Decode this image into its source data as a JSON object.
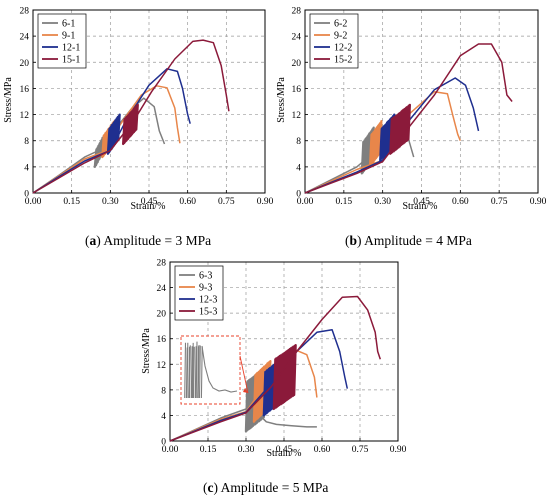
{
  "chart_data": [
    {
      "type": "line",
      "caption_letter": "a",
      "caption_text": "Amplitude = 3 MPa",
      "xlabel": "Strain/%",
      "ylabel": "Stress/MPa",
      "xlim": [
        0,
        0.9
      ],
      "ylim": [
        0,
        28
      ],
      "xticks": [
        "0.00",
        "0.15",
        "0.30",
        "0.45",
        "0.60",
        "0.75",
        "0.90"
      ],
      "yticks": [
        "0",
        "4",
        "8",
        "12",
        "16",
        "20",
        "24",
        "28"
      ],
      "grid": true,
      "legend_position": "top-left",
      "series": [
        {
          "name": "6-1",
          "color": "#7f7f7f",
          "x": [
            0.0,
            0.1,
            0.2,
            0.255,
            0.3,
            0.38,
            0.43,
            0.47,
            0.49,
            0.51
          ],
          "y": [
            0.0,
            2.7,
            5.5,
            6.5,
            8.8,
            12.8,
            14.5,
            13.2,
            9.5,
            7.5
          ],
          "loop_band": {
            "x": [
              0.24,
              0.27
            ],
            "y": [
              4.0,
              8.8
            ]
          }
        },
        {
          "name": "9-1",
          "color": "#e8864a",
          "x": [
            0.0,
            0.1,
            0.2,
            0.29,
            0.33,
            0.42,
            0.48,
            0.52,
            0.55,
            0.56,
            0.57
          ],
          "y": [
            0.0,
            2.6,
            5.2,
            6.5,
            10.0,
            15.0,
            16.4,
            16.1,
            13.0,
            10.0,
            7.6
          ],
          "loop_band": {
            "x": [
              0.27,
              0.31
            ],
            "y": [
              5.5,
              11.0
            ]
          }
        },
        {
          "name": "12-1",
          "color": "#1f2f8f",
          "x": [
            0.0,
            0.1,
            0.2,
            0.3,
            0.36,
            0.45,
            0.52,
            0.56,
            0.58,
            0.6,
            0.61
          ],
          "y": [
            0.0,
            2.5,
            4.9,
            6.5,
            11.0,
            16.5,
            19.0,
            18.6,
            16.0,
            12.0,
            10.6
          ],
          "loop_band": {
            "x": [
              0.29,
              0.33
            ],
            "y": [
              6.0,
              12.0
            ]
          }
        },
        {
          "name": "15-1",
          "color": "#8b1a3a",
          "x": [
            0.0,
            0.1,
            0.2,
            0.3,
            0.39,
            0.46,
            0.55,
            0.62,
            0.66,
            0.7,
            0.73,
            0.75,
            0.76
          ],
          "y": [
            0.0,
            2.3,
            4.6,
            6.5,
            11.0,
            15.5,
            20.5,
            23.2,
            23.4,
            23.0,
            19.5,
            15.0,
            12.5
          ],
          "loop_band": {
            "x": [
              0.35,
              0.4
            ],
            "y": [
              7.5,
              13.5
            ]
          }
        }
      ]
    },
    {
      "type": "line",
      "caption_letter": "b",
      "caption_text": "Amplitude = 4 MPa",
      "xlabel": "Strain/%",
      "ylabel": "Stress/MPa",
      "xlim": [
        0,
        0.9
      ],
      "ylim": [
        0,
        28
      ],
      "xticks": [
        "0.00",
        "0.15",
        "0.30",
        "0.45",
        "0.60",
        "0.75",
        "0.90"
      ],
      "yticks": [
        "0",
        "4",
        "8",
        "12",
        "16",
        "20",
        "24",
        "28"
      ],
      "grid": true,
      "legend_position": "top-left",
      "series": [
        {
          "name": "6-2",
          "color": "#7f7f7f",
          "x": [
            0.0,
            0.1,
            0.2,
            0.26,
            0.3,
            0.36,
            0.4,
            0.42
          ],
          "y": [
            0.0,
            2.0,
            4.0,
            6.0,
            7.8,
            9.8,
            8.2,
            5.5
          ],
          "loop_band": {
            "x": [
              0.22,
              0.26
            ],
            "y": [
              3.0,
              10.0
            ]
          }
        },
        {
          "name": "9-2",
          "color": "#e8864a",
          "x": [
            0.0,
            0.1,
            0.2,
            0.3,
            0.4,
            0.5,
            0.55,
            0.57,
            0.59,
            0.6
          ],
          "y": [
            0.0,
            1.8,
            3.6,
            5.0,
            12.0,
            15.5,
            15.2,
            12.0,
            9.0,
            8.0
          ],
          "loop_band": {
            "x": [
              0.25,
              0.29
            ],
            "y": [
              4.0,
              11.0
            ]
          }
        },
        {
          "name": "12-2",
          "color": "#1f2f8f",
          "x": [
            0.0,
            0.1,
            0.2,
            0.3,
            0.4,
            0.5,
            0.58,
            0.62,
            0.65,
            0.67
          ],
          "y": [
            0.0,
            1.6,
            3.2,
            5.0,
            11.0,
            15.8,
            17.6,
            16.5,
            13.0,
            9.5
          ],
          "loop_band": {
            "x": [
              0.29,
              0.34
            ],
            "y": [
              5.0,
              12.0
            ]
          }
        },
        {
          "name": "15-2",
          "color": "#8b1a3a",
          "x": [
            0.0,
            0.1,
            0.2,
            0.3,
            0.4,
            0.5,
            0.6,
            0.67,
            0.72,
            0.76,
            0.78,
            0.8
          ],
          "y": [
            0.0,
            1.5,
            3.0,
            4.8,
            10.0,
            15.0,
            21.0,
            22.8,
            22.8,
            20.0,
            15.0,
            14.0
          ],
          "loop_band": {
            "x": [
              0.33,
              0.4
            ],
            "y": [
              6.0,
              13.5
            ]
          }
        }
      ]
    },
    {
      "type": "line",
      "caption_letter": "c",
      "caption_text": "Amplitude = 5 MPa",
      "xlabel": "Strain/%",
      "ylabel": "Stress/MPa",
      "xlim": [
        0,
        0.9
      ],
      "ylim": [
        0,
        28
      ],
      "xticks": [
        "0.00",
        "0.15",
        "0.30",
        "0.45",
        "0.60",
        "0.75",
        "0.90"
      ],
      "yticks": [
        "0",
        "4",
        "8",
        "12",
        "16",
        "20",
        "24",
        "28"
      ],
      "grid": true,
      "legend_position": "top-left",
      "series": [
        {
          "name": "6-3",
          "color": "#7f7f7f",
          "x": [
            0.0,
            0.1,
            0.2,
            0.3,
            0.34,
            0.38,
            0.42,
            0.48,
            0.54,
            0.58
          ],
          "y": [
            0.0,
            1.8,
            3.6,
            5.0,
            4.6,
            3.0,
            2.6,
            2.4,
            2.2,
            2.2
          ],
          "loop_band": {
            "x": [
              0.3,
              0.37
            ],
            "y": [
              1.5,
              11.5
            ]
          }
        },
        {
          "name": "9-3",
          "color": "#e8864a",
          "x": [
            0.0,
            0.1,
            0.2,
            0.3,
            0.4,
            0.48,
            0.54,
            0.57,
            0.58
          ],
          "y": [
            0.0,
            1.7,
            3.4,
            4.6,
            10.0,
            14.5,
            13.5,
            10.0,
            6.8
          ],
          "loop_band": {
            "x": [
              0.33,
              0.39
            ],
            "y": [
              3.0,
              12.5
            ]
          }
        },
        {
          "name": "12-3",
          "color": "#1f2f8f",
          "x": [
            0.0,
            0.1,
            0.2,
            0.3,
            0.4,
            0.5,
            0.58,
            0.64,
            0.67,
            0.69,
            0.7
          ],
          "y": [
            0.0,
            1.6,
            3.2,
            4.5,
            9.0,
            14.0,
            17.0,
            17.4,
            14.0,
            10.0,
            8.2
          ],
          "loop_band": {
            "x": [
              0.37,
              0.44
            ],
            "y": [
              4.0,
              13.0
            ]
          }
        },
        {
          "name": "15-3",
          "color": "#8b1a3a",
          "x": [
            0.0,
            0.1,
            0.2,
            0.3,
            0.4,
            0.5,
            0.6,
            0.68,
            0.74,
            0.78,
            0.81,
            0.82,
            0.83
          ],
          "y": [
            0.0,
            1.5,
            3.0,
            4.4,
            8.5,
            14.0,
            19.0,
            22.5,
            22.6,
            20.5,
            17.0,
            14.0,
            12.8
          ],
          "loop_band": {
            "x": [
              0.41,
              0.49
            ],
            "y": [
              5.0,
              15.0
            ]
          }
        }
      ],
      "inset": {
        "series": "6-3",
        "x_range": [
          0.3,
          0.37
        ],
        "y_range": [
          1.5,
          11.5
        ]
      }
    }
  ]
}
